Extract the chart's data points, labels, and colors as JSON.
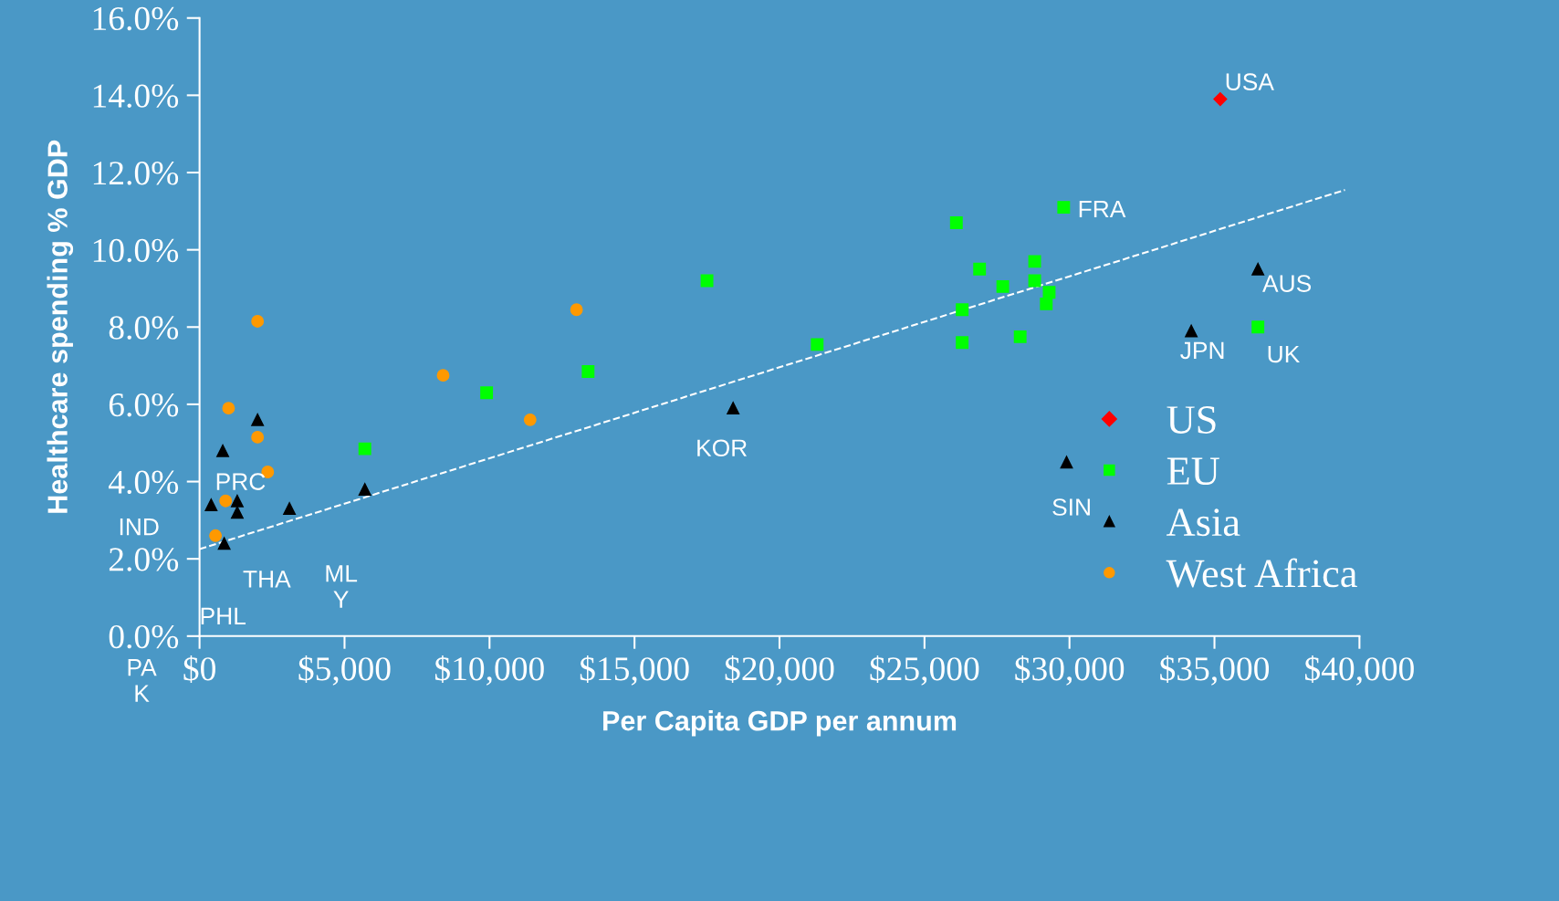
{
  "chart_data": {
    "type": "scatter",
    "xlabel": "Per Capita GDP per annum",
    "ylabel": "Healthcare spending % GDP",
    "xlim": [
      0,
      40000
    ],
    "ylim": [
      0,
      16
    ],
    "xticks": [
      {
        "value": 0,
        "label": "$0"
      },
      {
        "value": 5000,
        "label": "$5,000"
      },
      {
        "value": 10000,
        "label": "$10,000"
      },
      {
        "value": 15000,
        "label": "$15,000"
      },
      {
        "value": 20000,
        "label": "$20,000"
      },
      {
        "value": 25000,
        "label": "$25,000"
      },
      {
        "value": 30000,
        "label": "$30,000"
      },
      {
        "value": 35000,
        "label": "$35,000"
      },
      {
        "value": 40000,
        "label": "$40,000"
      }
    ],
    "yticks": [
      {
        "value": 0,
        "label": "0.0%"
      },
      {
        "value": 2,
        "label": "2.0%"
      },
      {
        "value": 4,
        "label": "4.0%"
      },
      {
        "value": 6,
        "label": "6.0%"
      },
      {
        "value": 8,
        "label": "8.0%"
      },
      {
        "value": 10,
        "label": "10.0%"
      },
      {
        "value": 12,
        "label": "12.0%"
      },
      {
        "value": 14,
        "label": "14.0%"
      },
      {
        "value": 16,
        "label": "16.0%"
      }
    ],
    "grid": false,
    "legend": "right",
    "series": [
      {
        "name": "US",
        "color": "#ff0000",
        "marker": "diamond",
        "x": [
          35200
        ],
        "values": [
          13.9
        ]
      },
      {
        "name": "EU",
        "color": "#00ff00",
        "marker": "square",
        "x": [
          26100,
          29800,
          26900,
          28800,
          27700,
          28800,
          29300,
          29200,
          26300,
          26300,
          28300,
          36500,
          17500,
          21300,
          13400,
          9900,
          5700
        ],
        "values": [
          10.7,
          11.1,
          9.5,
          9.7,
          9.05,
          9.2,
          8.9,
          8.6,
          8.45,
          7.6,
          7.75,
          8.0,
          9.2,
          7.55,
          6.85,
          6.3,
          4.85
        ]
      },
      {
        "name": "Asia",
        "color": "#000000",
        "marker": "triangle",
        "x": [
          36500,
          34200,
          29900,
          18400,
          2000,
          800,
          5700,
          3100,
          1300,
          1300,
          400,
          850
        ],
        "values": [
          9.5,
          7.9,
          4.5,
          5.9,
          5.6,
          4.8,
          3.8,
          3.3,
          3.5,
          3.2,
          3.4,
          2.4
        ]
      },
      {
        "name": "West Africa",
        "color": "#ff9900",
        "marker": "circle",
        "x": [
          2000,
          13000,
          8400,
          11400,
          1000,
          2000,
          2350,
          900,
          550
        ],
        "values": [
          8.15,
          8.45,
          6.75,
          5.6,
          5.9,
          5.15,
          4.25,
          3.5,
          2.6
        ]
      },
      {
        "type": "line",
        "color": "#ffffff",
        "line_style": "dashed",
        "marker": "none",
        "x": [
          0,
          39500
        ],
        "values": [
          2.25,
          11.55
        ]
      }
    ],
    "annotations": [
      {
        "text": "USA",
        "x": 35200,
        "y": 13.9
      },
      {
        "text": "FRA",
        "x": 29800,
        "y": 11.1
      },
      {
        "text": "AUS",
        "x": 36500,
        "y": 9.5
      },
      {
        "text": "JPN",
        "x": 34200,
        "y": 7.9
      },
      {
        "text": "UK",
        "x": 36500,
        "y": 8.0
      },
      {
        "text": "KOR",
        "x": 18400,
        "y": 5.9
      },
      {
        "text": "SIN",
        "x": 29900,
        "y": 4.5
      },
      {
        "text": "PRC",
        "x": 800,
        "y": 4.8
      },
      {
        "text": "IND",
        "x": 400,
        "y": 3.4
      },
      {
        "text": "PHL",
        "x": 850,
        "y": 2.4
      },
      "THA",
      "ML\nY",
      "PA\nK"
    ]
  }
}
